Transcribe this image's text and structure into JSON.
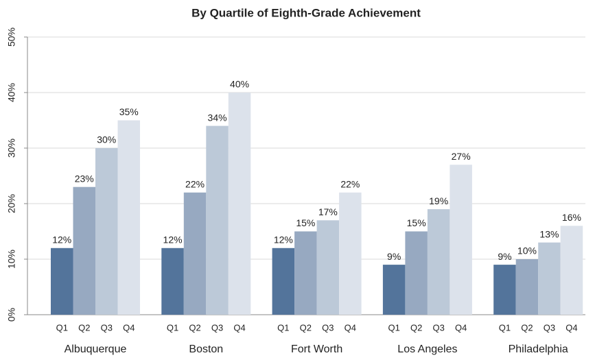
{
  "chart_data": {
    "type": "bar",
    "title": "By Quartile of Eighth-Grade Achievement",
    "categories": [
      "Albuquerque",
      "Boston",
      "Fort Worth",
      "Los Angeles",
      "Philadelphia"
    ],
    "series": [
      {
        "name": "Q1",
        "color": "#53749b",
        "values": [
          12,
          12,
          12,
          9,
          9
        ],
        "value_labels": [
          "12%",
          "12%",
          "12%",
          "9%",
          "9%"
        ]
      },
      {
        "name": "Q2",
        "color": "#97a9c1",
        "values": [
          23,
          22,
          15,
          15,
          10
        ],
        "value_labels": [
          "23%",
          "22%",
          "15%",
          "15%",
          "10%"
        ]
      },
      {
        "name": "Q3",
        "color": "#bcc9d8",
        "values": [
          30,
          34,
          17,
          19,
          13
        ],
        "value_labels": [
          "30%",
          "34%",
          "17%",
          "19%",
          "13%"
        ]
      },
      {
        "name": "Q4",
        "color": "#dce2eb",
        "values": [
          35,
          40,
          22,
          27,
          16
        ],
        "value_labels": [
          "35%",
          "40%",
          "22%",
          "27%",
          "16%"
        ]
      }
    ],
    "ylim": [
      0,
      50
    ],
    "yticks": [
      {
        "value": 0,
        "label": "0%"
      },
      {
        "value": 10,
        "label": "10%"
      },
      {
        "value": 20,
        "label": "20%"
      },
      {
        "value": 30,
        "label": "30%"
      },
      {
        "value": 40,
        "label": "40%"
      },
      {
        "value": 50,
        "label": "50%"
      }
    ],
    "grid": true
  }
}
